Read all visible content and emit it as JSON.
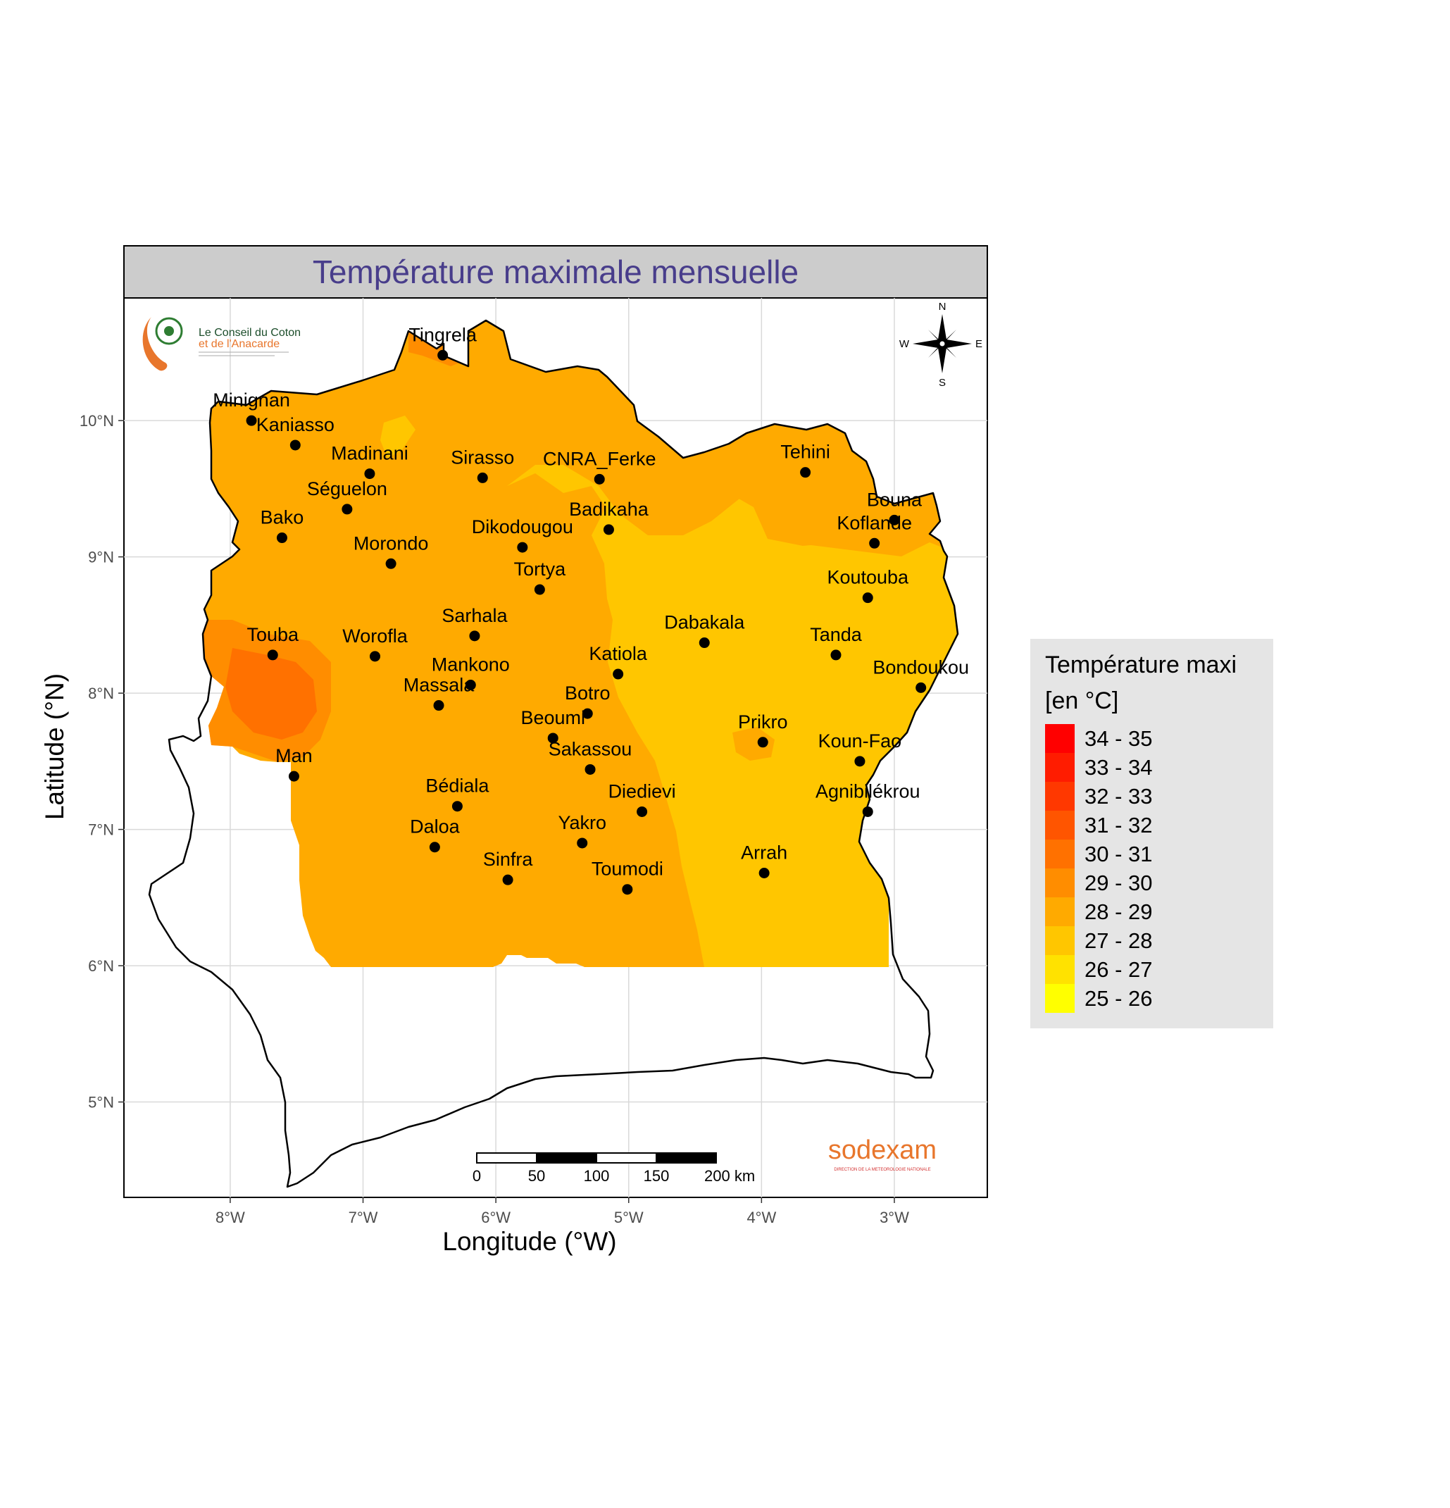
{
  "title": "Température maximale mensuelle",
  "axes": {
    "xlabel": "Longitude (°W)",
    "ylabel": "Latitude (°N)",
    "x_ticks": [
      "8°W",
      "7°W",
      "6°W",
      "5°W",
      "4°W",
      "3°W"
    ],
    "y_ticks": [
      "10°N",
      "9°N",
      "8°N",
      "7°N",
      "6°N",
      "5°N"
    ],
    "x_range": [
      -8.8,
      -2.3
    ],
    "y_range": [
      4.3,
      10.9
    ]
  },
  "legend": {
    "title_line1": "Température maxi",
    "title_line2": "[en °C]",
    "placement": "right",
    "classes": [
      {
        "label": "34 - 35",
        "color": "#ff0000"
      },
      {
        "label": "33 - 34",
        "color": "#ff1c00"
      },
      {
        "label": "32 - 33",
        "color": "#ff3800"
      },
      {
        "label": "31 - 32",
        "color": "#ff5500"
      },
      {
        "label": "30 - 31",
        "color": "#ff7100"
      },
      {
        "label": "29 - 30",
        "color": "#ff8d00"
      },
      {
        "label": "28 - 29",
        "color": "#ffaa00"
      },
      {
        "label": "27 - 28",
        "color": "#ffc600"
      },
      {
        "label": "26 - 27",
        "color": "#ffe200"
      },
      {
        "label": "25 - 26",
        "color": "#ffff00"
      }
    ]
  },
  "colors": {
    "zone_27_28": "#ffc600",
    "zone_28_29": "#ffaa00",
    "zone_29_30": "#ff8d00",
    "zone_30_31": "#ff7100",
    "title_color": "#483d8b",
    "strip_background": "#cccccc",
    "legend_background": "#e5e5e5"
  },
  "stations": [
    {
      "name": "Tingrela",
      "lon": -6.4,
      "lat": 10.48
    },
    {
      "name": "Minignan",
      "lon": -7.84,
      "lat": 10.0
    },
    {
      "name": "Kaniasso",
      "lon": -7.51,
      "lat": 9.82
    },
    {
      "name": "Madinani",
      "lon": -6.95,
      "lat": 9.61
    },
    {
      "name": "Sirasso",
      "lon": -6.1,
      "lat": 9.58
    },
    {
      "name": "CNRA_Ferke",
      "lon": -5.22,
      "lat": 9.57
    },
    {
      "name": "Tehini",
      "lon": -3.67,
      "lat": 9.62
    },
    {
      "name": "Séguelon",
      "lon": -7.12,
      "lat": 9.35
    },
    {
      "name": "Bako",
      "lon": -7.61,
      "lat": 9.14
    },
    {
      "name": "Badikaha",
      "lon": -5.15,
      "lat": 9.2
    },
    {
      "name": "Bouna",
      "lon": -3.0,
      "lat": 9.27
    },
    {
      "name": "Koflande",
      "lon": -3.15,
      "lat": 9.1
    },
    {
      "name": "Dikodougou",
      "lon": -5.8,
      "lat": 9.07
    },
    {
      "name": "Morondo",
      "lon": -6.79,
      "lat": 8.95
    },
    {
      "name": "Tortya",
      "lon": -5.67,
      "lat": 8.76
    },
    {
      "name": "Koutouba",
      "lon": -3.2,
      "lat": 8.7
    },
    {
      "name": "Sarhala",
      "lon": -6.16,
      "lat": 8.42
    },
    {
      "name": "Dabakala",
      "lon": -4.43,
      "lat": 8.37
    },
    {
      "name": "Touba",
      "lon": -7.68,
      "lat": 8.28
    },
    {
      "name": "Worofla",
      "lon": -6.91,
      "lat": 8.27
    },
    {
      "name": "Tanda",
      "lon": -3.44,
      "lat": 8.28
    },
    {
      "name": "Katiola",
      "lon": -5.08,
      "lat": 8.14
    },
    {
      "name": "Mankono",
      "lon": -6.19,
      "lat": 8.06
    },
    {
      "name": "Bondoukou",
      "lon": -2.8,
      "lat": 8.04
    },
    {
      "name": "Massala",
      "lon": -6.43,
      "lat": 7.91
    },
    {
      "name": "Botro",
      "lon": -5.31,
      "lat": 7.85
    },
    {
      "name": "Beoumi",
      "lon": -5.57,
      "lat": 7.67
    },
    {
      "name": "Prikro",
      "lon": -3.99,
      "lat": 7.64
    },
    {
      "name": "Koun-Fao",
      "lon": -3.26,
      "lat": 7.5
    },
    {
      "name": "Sakassou",
      "lon": -5.29,
      "lat": 7.44
    },
    {
      "name": "Man",
      "lon": -7.52,
      "lat": 7.39
    },
    {
      "name": "Bédiala",
      "lon": -6.29,
      "lat": 7.17
    },
    {
      "name": "Diedievi",
      "lon": -4.9,
      "lat": 7.13
    },
    {
      "name": "Agnibilékrou",
      "lon": -3.2,
      "lat": 7.13
    },
    {
      "name": "Yakro",
      "lon": -5.35,
      "lat": 6.9
    },
    {
      "name": "Daloa",
      "lon": -6.46,
      "lat": 6.87
    },
    {
      "name": "Arrah",
      "lon": -3.98,
      "lat": 6.68
    },
    {
      "name": "Sinfra",
      "lon": -5.91,
      "lat": 6.63
    },
    {
      "name": "Toumodi",
      "lon": -5.01,
      "lat": 6.56
    }
  ],
  "compass": {
    "n": "N",
    "s": "S",
    "e": "E",
    "w": "W"
  },
  "scale_bar": {
    "labels": [
      "0",
      "50",
      "100",
      "150",
      "200 km"
    ]
  },
  "logos": {
    "conseil_line1": "Le Conseil du Coton",
    "conseil_line2": "et de l'Anacarde",
    "sodexam": "sodexam",
    "sodexam_sub": "DIRECTION DE LA METEOROLOGIE NATIONALE"
  }
}
